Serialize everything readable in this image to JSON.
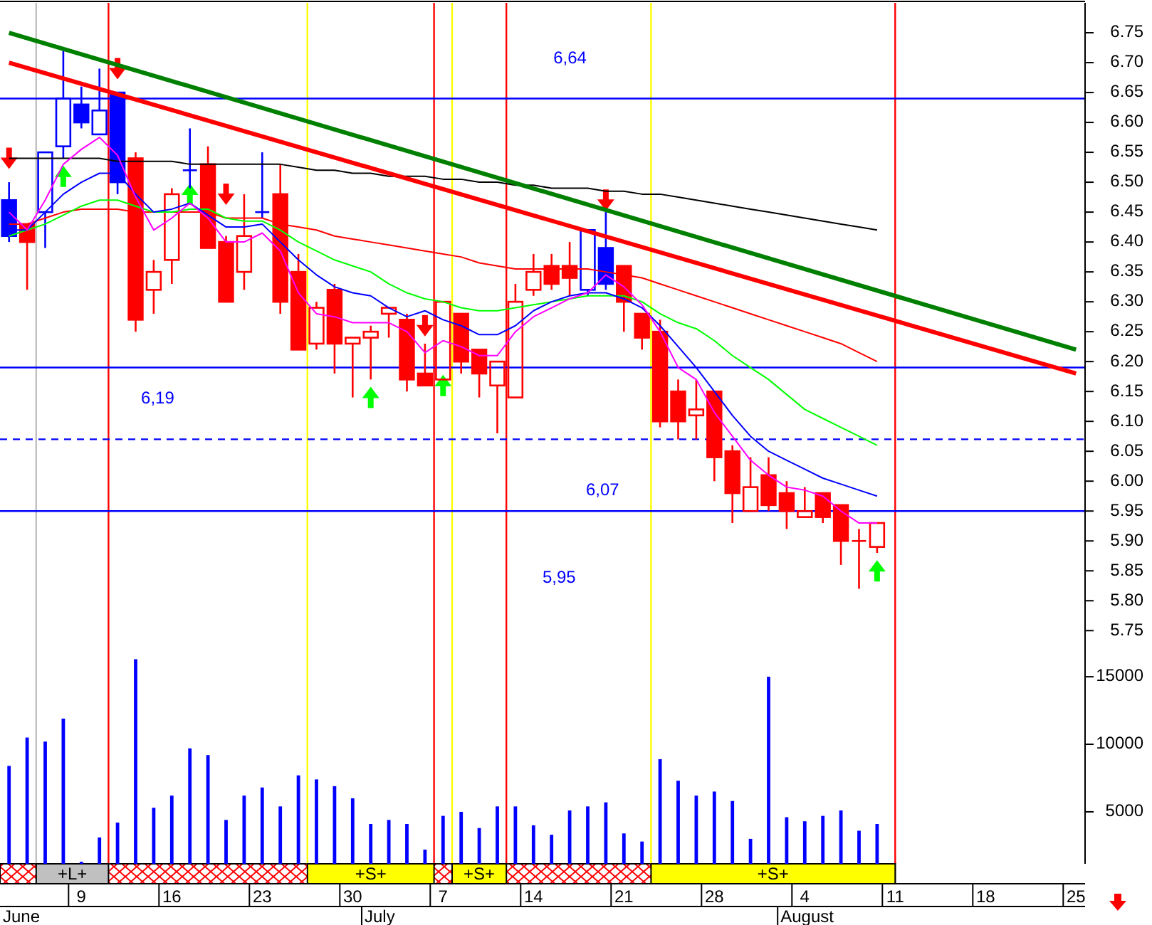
{
  "chart_data": {
    "type": "candlestick",
    "categories": [
      null,
      null,
      null,
      null,
      "9",
      null,
      null,
      null,
      null,
      "16",
      null,
      null,
      null,
      null,
      "23",
      null,
      null,
      null,
      null,
      "30",
      null,
      null,
      null,
      null,
      "7",
      null,
      null,
      null,
      null,
      "14",
      null,
      null,
      null,
      null,
      "21",
      null,
      null,
      null,
      null,
      "28",
      null,
      null,
      null,
      null,
      "4",
      null,
      null,
      null,
      null,
      "11",
      null,
      null,
      null,
      null,
      "18",
      null,
      null,
      null,
      null,
      "25"
    ],
    "ohlc": [
      [
        6.47,
        6.5,
        6.4,
        6.41
      ],
      [
        6.43,
        6.43,
        6.32,
        6.4
      ],
      [
        6.45,
        6.55,
        6.39,
        6.55
      ],
      [
        6.56,
        6.72,
        6.54,
        6.64
      ],
      [
        6.63,
        6.66,
        6.59,
        6.6
      ],
      [
        6.58,
        6.69,
        6.58,
        6.62
      ],
      [
        6.65,
        6.65,
        6.48,
        6.5
      ],
      [
        6.54,
        6.55,
        6.25,
        6.27
      ],
      [
        6.32,
        6.37,
        6.28,
        6.35
      ],
      [
        6.37,
        6.49,
        6.33,
        6.48
      ],
      [
        6.52,
        6.59,
        6.49,
        6.52
      ],
      [
        6.53,
        6.56,
        6.39,
        6.39
      ],
      [
        6.4,
        6.41,
        6.3,
        6.3
      ],
      [
        6.35,
        6.48,
        6.32,
        6.41
      ],
      [
        6.45,
        6.55,
        6.44,
        6.45
      ],
      [
        6.48,
        6.53,
        6.28,
        6.3
      ],
      [
        6.35,
        6.38,
        6.22,
        6.22
      ],
      [
        6.23,
        6.3,
        6.22,
        6.29
      ],
      [
        6.32,
        6.33,
        6.18,
        6.23
      ],
      [
        6.23,
        6.24,
        6.14,
        6.24
      ],
      [
        6.24,
        6.26,
        6.17,
        6.25
      ],
      [
        6.28,
        6.29,
        6.24,
        6.29
      ],
      [
        6.27,
        6.28,
        6.15,
        6.17
      ],
      [
        6.18,
        6.23,
        6.16,
        6.16
      ],
      [
        6.17,
        6.3,
        6.17,
        6.3
      ],
      [
        6.28,
        6.28,
        6.18,
        6.2
      ],
      [
        6.22,
        6.22,
        6.14,
        6.18
      ],
      [
        6.16,
        6.2,
        6.08,
        6.2
      ],
      [
        6.14,
        6.33,
        6.14,
        6.3
      ],
      [
        6.32,
        6.38,
        6.31,
        6.35
      ],
      [
        6.36,
        6.38,
        6.32,
        6.33
      ],
      [
        6.36,
        6.4,
        6.31,
        6.34
      ],
      [
        6.32,
        6.42,
        6.31,
        6.42
      ],
      [
        6.39,
        6.45,
        6.32,
        6.33
      ],
      [
        6.36,
        6.36,
        6.25,
        6.3
      ],
      [
        6.28,
        6.28,
        6.22,
        6.24
      ],
      [
        6.25,
        6.27,
        6.09,
        6.1
      ],
      [
        6.15,
        6.17,
        6.07,
        6.1
      ],
      [
        6.11,
        6.17,
        6.07,
        6.12
      ],
      [
        6.15,
        6.15,
        6.0,
        6.04
      ],
      [
        6.05,
        6.06,
        5.93,
        5.98
      ],
      [
        5.95,
        6.04,
        5.95,
        5.99
      ],
      [
        6.01,
        6.04,
        5.95,
        5.96
      ],
      [
        5.98,
        6.0,
        5.92,
        5.95
      ],
      [
        5.94,
        5.99,
        5.94,
        5.95
      ],
      [
        5.98,
        5.98,
        5.93,
        5.94
      ],
      [
        5.96,
        5.96,
        5.86,
        5.9
      ],
      [
        5.9,
        5.92,
        5.82,
        5.9
      ],
      [
        5.89,
        5.93,
        5.88,
        5.93
      ],
      null,
      null,
      null,
      null,
      null,
      null,
      null,
      null,
      null,
      null,
      null
    ],
    "colors": [
      "#0000ff",
      "#ff0000",
      "#0000ff",
      "#0000ff",
      "#0000ff",
      "#0000ff",
      "#0000ff",
      "#ff0000",
      "#ff0000",
      "#ff0000",
      "#0000ff",
      "#ff0000",
      "#ff0000",
      "#ff0000",
      "#0000ff",
      "#ff0000",
      "#ff0000",
      "#ff0000",
      "#ff0000",
      "#ff0000",
      "#ff0000",
      "#ff0000",
      "#ff0000",
      "#ff0000",
      "#ff0000",
      "#ff0000",
      "#ff0000",
      "#ff0000",
      "#ff0000",
      "#ff0000",
      "#ff0000",
      "#ff0000",
      "#0000ff",
      "#0000ff",
      "#ff0000",
      "#ff0000",
      "#ff0000",
      "#ff0000",
      "#ff0000",
      "#ff0000",
      "#ff0000",
      "#ff0000",
      "#ff0000",
      "#ff0000",
      "#ff0000",
      "#ff0000",
      "#ff0000",
      "#ff0000",
      "#ff0000",
      null,
      null,
      null,
      null,
      null,
      null,
      null,
      null,
      null,
      null,
      null
    ],
    "series": [
      {
        "type": "bar",
        "axis": "y2",
        "color": "#0000ff",
        "values": [
          8400,
          10500,
          10200,
          11900,
          1300,
          3100,
          4200,
          16300,
          5300,
          6200,
          9700,
          9200,
          4400,
          6200,
          6800,
          5400,
          7700,
          7400,
          6900,
          6000,
          4100,
          4400,
          4100,
          2200,
          4700,
          5000,
          3800,
          5400,
          5400,
          4000,
          3300,
          5100,
          5400,
          5700,
          3400,
          2800,
          8900,
          7300,
          6200,
          6500,
          5800,
          3000,
          15000,
          4600,
          4300,
          4700,
          5100,
          3600,
          4100,
          null,
          null,
          null,
          null,
          null,
          null,
          null,
          null,
          null,
          null,
          null
        ]
      },
      {
        "type": "line",
        "color": "#000000",
        "values": [
          6.54,
          6.54,
          6.54,
          6.54,
          6.54,
          6.54,
          6.535,
          6.535,
          6.535,
          6.535,
          6.53,
          6.53,
          6.53,
          6.53,
          6.53,
          6.53,
          6.525,
          6.52,
          6.52,
          6.515,
          6.515,
          6.51,
          6.51,
          6.51,
          6.505,
          6.505,
          6.5,
          6.5,
          6.495,
          6.495,
          6.49,
          6.49,
          6.49,
          6.485,
          6.485,
          6.48,
          6.48,
          6.475,
          6.47,
          6.465,
          6.46,
          6.455,
          6.45,
          6.445,
          6.44,
          6.435,
          6.43,
          6.425,
          6.42,
          null,
          null,
          null,
          null,
          null,
          null,
          null,
          null,
          null,
          null,
          null
        ]
      },
      {
        "type": "line",
        "color": "#ff0000",
        "values": [
          6.43,
          6.43,
          6.44,
          6.45,
          6.455,
          6.455,
          6.455,
          6.45,
          6.45,
          6.45,
          6.45,
          6.45,
          6.44,
          6.44,
          6.44,
          6.43,
          6.425,
          6.42,
          6.41,
          6.405,
          6.4,
          6.395,
          6.39,
          6.385,
          6.38,
          6.375,
          6.365,
          6.36,
          6.355,
          6.355,
          6.355,
          6.355,
          6.355,
          6.35,
          6.345,
          6.34,
          6.33,
          6.32,
          6.31,
          6.3,
          6.29,
          6.28,
          6.27,
          6.26,
          6.25,
          6.24,
          6.23,
          6.215,
          6.2,
          null,
          null,
          null,
          null,
          null,
          null,
          null,
          null,
          null,
          null,
          null
        ]
      },
      {
        "type": "line",
        "color": "#00ff00",
        "values": [
          6.41,
          6.42,
          6.43,
          6.445,
          6.46,
          6.47,
          6.47,
          6.46,
          6.45,
          6.45,
          6.455,
          6.455,
          6.44,
          6.435,
          6.435,
          6.42,
          6.4,
          6.385,
          6.37,
          6.36,
          6.35,
          6.33,
          6.315,
          6.305,
          6.3,
          6.29,
          6.285,
          6.285,
          6.29,
          6.295,
          6.3,
          6.305,
          6.31,
          6.31,
          6.31,
          6.3,
          6.28,
          6.265,
          6.255,
          6.235,
          6.21,
          6.19,
          6.17,
          6.145,
          6.12,
          6.105,
          6.09,
          6.075,
          6.06,
          null,
          null,
          null,
          null,
          null,
          null,
          null,
          null,
          null,
          null,
          null
        ]
      },
      {
        "type": "line",
        "color": "#0000ff",
        "values": [
          6.42,
          6.42,
          6.45,
          6.48,
          6.5,
          6.515,
          6.515,
          6.48,
          6.45,
          6.455,
          6.465,
          6.445,
          6.425,
          6.425,
          6.43,
          6.4,
          6.37,
          6.345,
          6.325,
          6.315,
          6.31,
          6.29,
          6.275,
          6.285,
          6.27,
          6.26,
          6.245,
          6.245,
          6.26,
          6.285,
          6.3,
          6.31,
          6.315,
          6.315,
          6.305,
          6.29,
          6.26,
          6.225,
          6.19,
          6.15,
          6.11,
          6.075,
          6.05,
          6.035,
          6.02,
          6.005,
          5.995,
          5.985,
          5.975,
          null,
          null,
          null,
          null,
          null,
          null,
          null,
          null,
          null,
          null,
          null
        ]
      },
      {
        "type": "line",
        "color": "#ff00ff",
        "values": [
          6.45,
          6.42,
          6.47,
          6.53,
          6.555,
          6.575,
          6.545,
          6.475,
          6.42,
          6.44,
          6.465,
          6.44,
          6.4,
          6.4,
          6.415,
          6.385,
          6.315,
          6.28,
          6.275,
          6.265,
          6.265,
          6.265,
          6.25,
          6.215,
          6.235,
          6.225,
          6.21,
          6.21,
          6.25,
          6.275,
          6.29,
          6.305,
          6.315,
          6.345,
          6.325,
          6.295,
          6.25,
          6.19,
          6.17,
          6.115,
          6.075,
          6.035,
          6.01,
          5.99,
          5.985,
          5.975,
          5.95,
          5.93,
          5.93,
          null,
          null,
          null,
          null,
          null,
          null,
          null,
          null,
          null,
          null,
          null
        ]
      },
      {
        "type": "line",
        "color": "#008000",
        "values": [
          6.75,
          null,
          null,
          null,
          null,
          null,
          null,
          null,
          null,
          null,
          null,
          null,
          null,
          null,
          null,
          null,
          null,
          null,
          null,
          null,
          null,
          null,
          null,
          null,
          null,
          null,
          null,
          null,
          null,
          null,
          null,
          null,
          null,
          null,
          null,
          null,
          null,
          null,
          null,
          null,
          null,
          null,
          null,
          null,
          null,
          null,
          null,
          null,
          null,
          null,
          null,
          null,
          null,
          null,
          null,
          null,
          null,
          null,
          null,
          6.22
        ]
      },
      {
        "type": "line",
        "color": "#ff0000",
        "values": [
          6.7,
          null,
          null,
          null,
          null,
          null,
          null,
          null,
          null,
          null,
          null,
          null,
          null,
          null,
          null,
          null,
          null,
          null,
          null,
          null,
          null,
          null,
          null,
          null,
          null,
          null,
          null,
          null,
          null,
          null,
          null,
          null,
          null,
          null,
          null,
          null,
          null,
          null,
          null,
          null,
          null,
          null,
          null,
          null,
          null,
          null,
          null,
          null,
          null,
          null,
          null,
          null,
          null,
          null,
          null,
          null,
          null,
          null,
          null,
          6.18
        ]
      },
      {
        "type": "scatter",
        "color": "#ff0000",
        "values": [
          6.54,
          null,
          null,
          null,
          null,
          null,
          6.69,
          null,
          null,
          null,
          null,
          null,
          6.48,
          null,
          null,
          null,
          null,
          null,
          null,
          null,
          null,
          null,
          null,
          6.26,
          null,
          null,
          null,
          null,
          null,
          null,
          null,
          null,
          null,
          6.47,
          null,
          null,
          null,
          null,
          null,
          null,
          null,
          null,
          null,
          null,
          null,
          null,
          null,
          null,
          null,
          null,
          null,
          null,
          null,
          null,
          null,
          null,
          null,
          null,
          null,
          null
        ]
      },
      {
        "type": "scatter",
        "color": "#00ff00",
        "values": [
          null,
          null,
          null,
          6.51,
          null,
          null,
          null,
          null,
          null,
          null,
          6.48,
          null,
          null,
          null,
          null,
          null,
          null,
          null,
          null,
          null,
          6.14,
          null,
          null,
          null,
          6.16,
          null,
          null,
          null,
          null,
          null,
          null,
          null,
          null,
          null,
          null,
          null,
          null,
          null,
          null,
          null,
          null,
          null,
          null,
          null,
          null,
          null,
          null,
          null,
          5.85,
          null,
          null,
          null,
          null,
          null,
          null,
          null,
          null,
          null,
          null,
          null
        ]
      }
    ],
    "ylim": [
      5.36,
      6.8
    ],
    "yticks": [
      5.75,
      {
        "value": 5.8,
        "label": "5.80"
      },
      5.85,
      {
        "value": 5.9,
        "label": "5.90"
      },
      5.95,
      {
        "value": 6,
        "label": "6.00"
      },
      6.05,
      {
        "value": 6.1,
        "label": "6.10"
      },
      6.15,
      {
        "value": 6.2,
        "label": "6.20"
      },
      6.25,
      {
        "value": 6.3,
        "label": "6.30"
      },
      6.35,
      {
        "value": 6.4,
        "label": "6.40"
      },
      6.45,
      {
        "value": 6.5,
        "label": "6.50"
      },
      6.55,
      {
        "value": 6.6,
        "label": "6.60"
      },
      6.65,
      {
        "value": 6.7,
        "label": "6.70"
      },
      6.75
    ],
    "y2lim": [
      1150,
      64900
    ],
    "y2ticks": [
      5000,
      10000,
      15000
    ],
    "ref_lines": [
      {
        "axis": "y",
        "value": 6.64,
        "label": "6,64",
        "color": "#0000ff"
      },
      {
        "axis": "y",
        "value": 6.19,
        "label": "6,19",
        "color": "#0000ff"
      },
      {
        "axis": "y",
        "value": 6.07,
        "label": "6,07",
        "color": "#0000ff",
        "line_style": "dashed"
      },
      {
        "axis": "y",
        "value": 5.95,
        "label": "5,95",
        "color": "#0000ff"
      }
    ],
    "annotations": [
      "+L+",
      "+S+",
      "+S+",
      "+S+",
      "June",
      "July",
      "August"
    ]
  }
}
